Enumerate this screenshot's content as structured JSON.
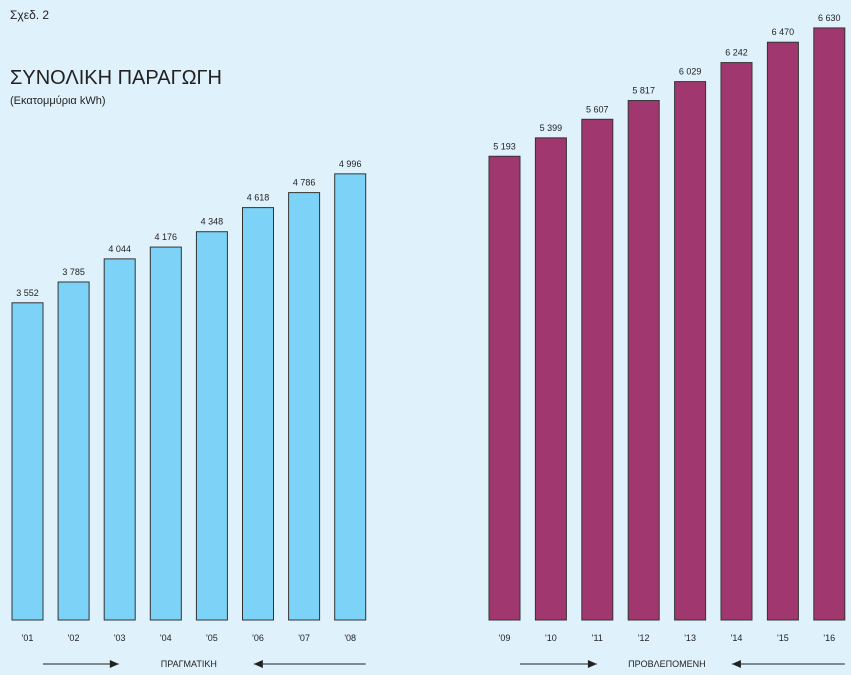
{
  "chart_data": {
    "type": "bar",
    "label": "Σχεδ. 2",
    "title": "ΣΥΝΟΛΙΚΗ ΠΑΡΑΓΩΓΗ",
    "subtitle": "(Εκατομμύρια kWh)",
    "categories": [
      "'01",
      "'02",
      "'03",
      "'04",
      "'05",
      "'06",
      "'07",
      "'08",
      "'09",
      "'10",
      "'11",
      "'12",
      "'13",
      "'14",
      "'15",
      "'16"
    ],
    "series": [
      {
        "name": "ΠΡΑΓΜΑΤΙΚΗ",
        "color": "#7dd3f7",
        "values": [
          3552,
          3785,
          4044,
          4176,
          4348,
          4618,
          4786,
          4996,
          null,
          null,
          null,
          null,
          null,
          null,
          null,
          null
        ],
        "value_labels": [
          "3 552",
          "3 785",
          "4 044",
          "4 176",
          "4 348",
          "4 618",
          "4 786",
          "4 996",
          null,
          null,
          null,
          null,
          null,
          null,
          null,
          null
        ]
      },
      {
        "name": "ΠΡΟΒΛΕΠΟΜΕΝΗ",
        "color": "#a0386f",
        "values": [
          null,
          null,
          null,
          null,
          null,
          null,
          null,
          null,
          5193,
          5399,
          5607,
          5817,
          6029,
          6242,
          6470,
          6630
        ],
        "value_labels": [
          null,
          null,
          null,
          null,
          null,
          null,
          null,
          null,
          "5 193",
          "5 399",
          "5 607",
          "5 817",
          "6 029",
          "6 242",
          "6 470",
          "6 630"
        ]
      }
    ]
  }
}
